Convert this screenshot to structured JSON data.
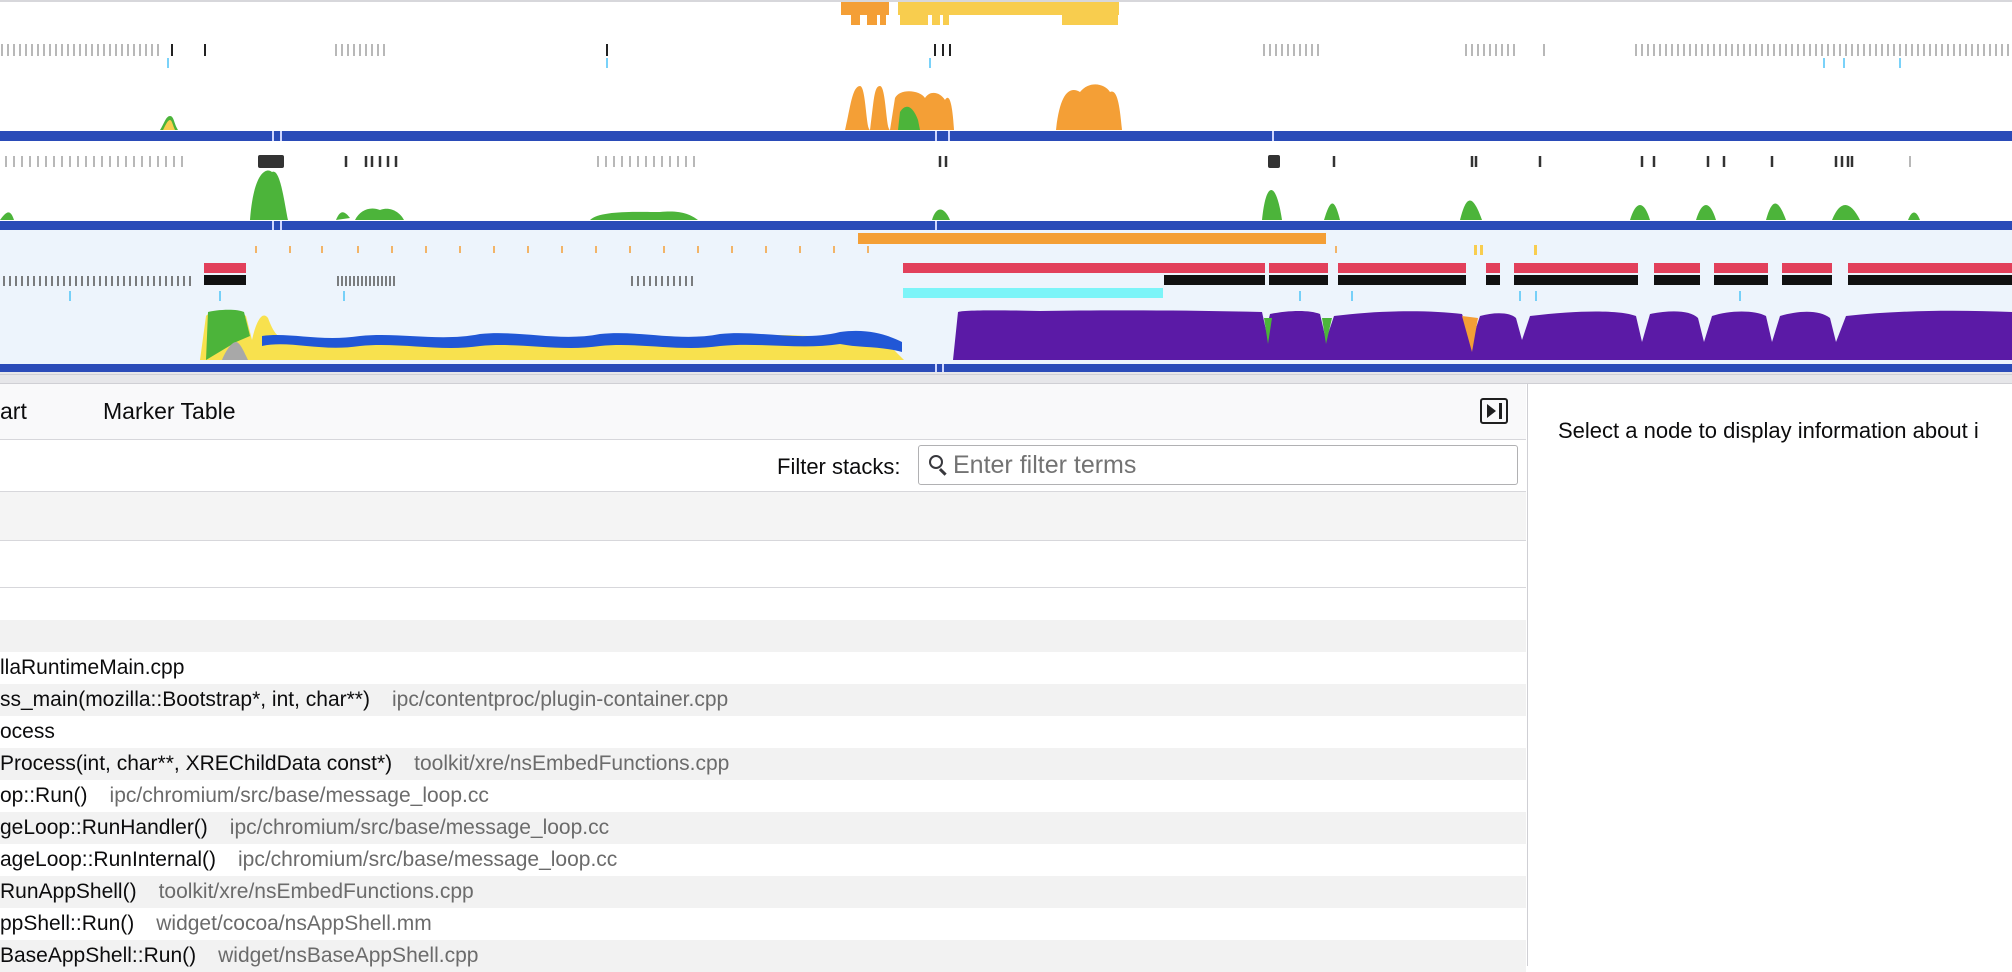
{
  "tabs": {
    "call_tree_partial": "art",
    "marker_table": "Marker Table"
  },
  "filter": {
    "label": "Filter stacks:",
    "placeholder": "Enter filter terms"
  },
  "tree_rows": [
    {
      "fn": "llaRuntimeMain.cpp",
      "lib": ""
    },
    {
      "fn": "ss_main(mozilla::Bootstrap*, int, char**)",
      "lib": "ipc/contentproc/plugin-container.cpp"
    },
    {
      "fn": "ocess",
      "lib": ""
    },
    {
      "fn": "Process(int, char**, XREChildData const*)",
      "lib": "toolkit/xre/nsEmbedFunctions.cpp"
    },
    {
      "fn": "op::Run()",
      "lib": "ipc/chromium/src/base/message_loop.cc"
    },
    {
      "fn": "geLoop::RunHandler()",
      "lib": "ipc/chromium/src/base/message_loop.cc"
    },
    {
      "fn": "ageLoop::RunInternal()",
      "lib": "ipc/chromium/src/base/message_loop.cc"
    },
    {
      "fn": "RunAppShell()",
      "lib": "toolkit/xre/nsEmbedFunctions.cpp"
    },
    {
      "fn": "ppShell::Run()",
      "lib": "widget/cocoa/nsAppShell.mm"
    },
    {
      "fn": "BaseAppShell::Run()",
      "lib": "widget/nsBaseAppShell.cpp"
    }
  ],
  "sidebar": {
    "message": "Select a node to display information about i"
  },
  "colors": {
    "orange": "#f49f36",
    "yellow": "#f8cd4e",
    "green": "#4cb43a",
    "blue_track": "#2a4bb8",
    "purple": "#5b1aa6",
    "red": "#e2405b",
    "cyan": "#7cf4f8",
    "graph_bg": "#edf4fc"
  }
}
